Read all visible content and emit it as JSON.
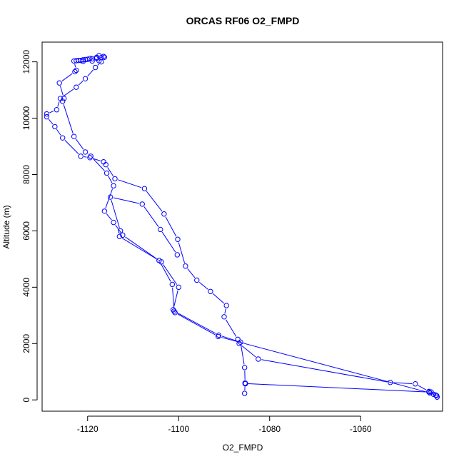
{
  "chart_data": {
    "type": "line",
    "title": "ORCAS RF06 O2_FMPD",
    "xlabel": "O2_FMPD",
    "ylabel": "Altitude (m)",
    "xlim": [
      -1130,
      -1042
    ],
    "ylim": [
      -400,
      12700
    ],
    "xticks": [
      -1120,
      -1100,
      -1080,
      -1060
    ],
    "yticks": [
      0,
      2000,
      4000,
      6000,
      8000,
      10000,
      12000
    ],
    "grid": false,
    "series_color": "#0000ff",
    "series": [
      {
        "points": [
          [
            -1085.5,
            230
          ],
          [
            -1085.4,
            600
          ],
          [
            -1085.5,
            1150
          ],
          [
            -1086.4,
            2050
          ],
          [
            -1091.2,
            2300
          ],
          [
            -1101.0,
            3150
          ],
          [
            -1101.4,
            4100
          ],
          [
            -1104.3,
            4950
          ],
          [
            -1112.3,
            5850
          ],
          [
            -1114.3,
            6300
          ],
          [
            -1116.3,
            6700
          ],
          [
            -1114.3,
            7600
          ],
          [
            -1115.8,
            8050
          ],
          [
            -1119.3,
            8650
          ],
          [
            -1120.5,
            8800
          ],
          [
            -1123.0,
            9350
          ],
          [
            -1125.5,
            10600
          ],
          [
            -1125.2,
            10700
          ],
          [
            -1126.2,
            11250
          ],
          [
            -1122.8,
            11650
          ],
          [
            -1122.5,
            11700
          ],
          [
            -1123.0,
            12030
          ],
          [
            -1122.0,
            12050
          ],
          [
            -1121.0,
            12070
          ],
          [
            -1120.0,
            12090
          ],
          [
            -1119.0,
            12110
          ],
          [
            -1118.0,
            12130
          ],
          [
            -1117.0,
            12150
          ],
          [
            -1116.5,
            12190
          ],
          [
            -1117.5,
            12220
          ],
          [
            -1118.0,
            12160
          ],
          [
            -1119.5,
            12120
          ],
          [
            -1120.5,
            12080
          ],
          [
            -1121.5,
            12050
          ],
          [
            -1122.5,
            12040
          ],
          [
            -1121.0,
            12020
          ],
          [
            -1119.0,
            12030
          ],
          [
            -1117.5,
            12040
          ],
          [
            -1116.3,
            12160
          ],
          [
            -1117.0,
            12000
          ],
          [
            -1118.3,
            11800
          ],
          [
            -1120.5,
            11400
          ],
          [
            -1122.5,
            11100
          ],
          [
            -1126.0,
            10700
          ],
          [
            -1126.8,
            10300
          ],
          [
            -1129.0,
            10150
          ],
          [
            -1129.0,
            10050
          ],
          [
            -1127.2,
            9700
          ],
          [
            -1125.5,
            9300
          ],
          [
            -1121.5,
            8650
          ],
          [
            -1119.5,
            8600
          ],
          [
            -1116.5,
            8450
          ],
          [
            -1116.0,
            8350
          ],
          [
            -1114.0,
            7850
          ],
          [
            -1107.5,
            7500
          ],
          [
            -1103.2,
            6600
          ],
          [
            -1100.2,
            5700
          ],
          [
            -1098.5,
            4750
          ],
          [
            -1096.0,
            4250
          ],
          [
            -1093.0,
            3850
          ],
          [
            -1089.5,
            3350
          ],
          [
            -1090.0,
            2950
          ],
          [
            -1087.0,
            2150
          ],
          [
            -1086.7,
            2000
          ],
          [
            -1082.5,
            1450
          ],
          [
            -1053.5,
            620
          ],
          [
            -1048.0,
            570
          ],
          [
            -1045.0,
            300
          ],
          [
            -1044.5,
            280
          ],
          [
            -1043.5,
            170
          ],
          [
            -1043.2,
            100
          ],
          [
            -1044.0,
            200
          ],
          [
            -1045.0,
            280
          ],
          [
            -1085.4,
            580
          ],
          [
            -1085.3,
            580
          ]
        ]
      },
      {
        "points": [
          [
            -1043.3,
            150
          ],
          [
            -1044.8,
            250
          ],
          [
            -1091.3,
            2250
          ],
          [
            -1100.8,
            3100
          ],
          [
            -1101.2,
            3200
          ],
          [
            -1100.0,
            4000
          ],
          [
            -1103.8,
            4900
          ],
          [
            -1113.0,
            5800
          ],
          [
            -1112.8,
            6000
          ],
          [
            -1115.0,
            7200
          ],
          [
            -1108.0,
            6950
          ],
          [
            -1104.0,
            6050
          ],
          [
            -1100.3,
            5150
          ]
        ]
      }
    ]
  }
}
